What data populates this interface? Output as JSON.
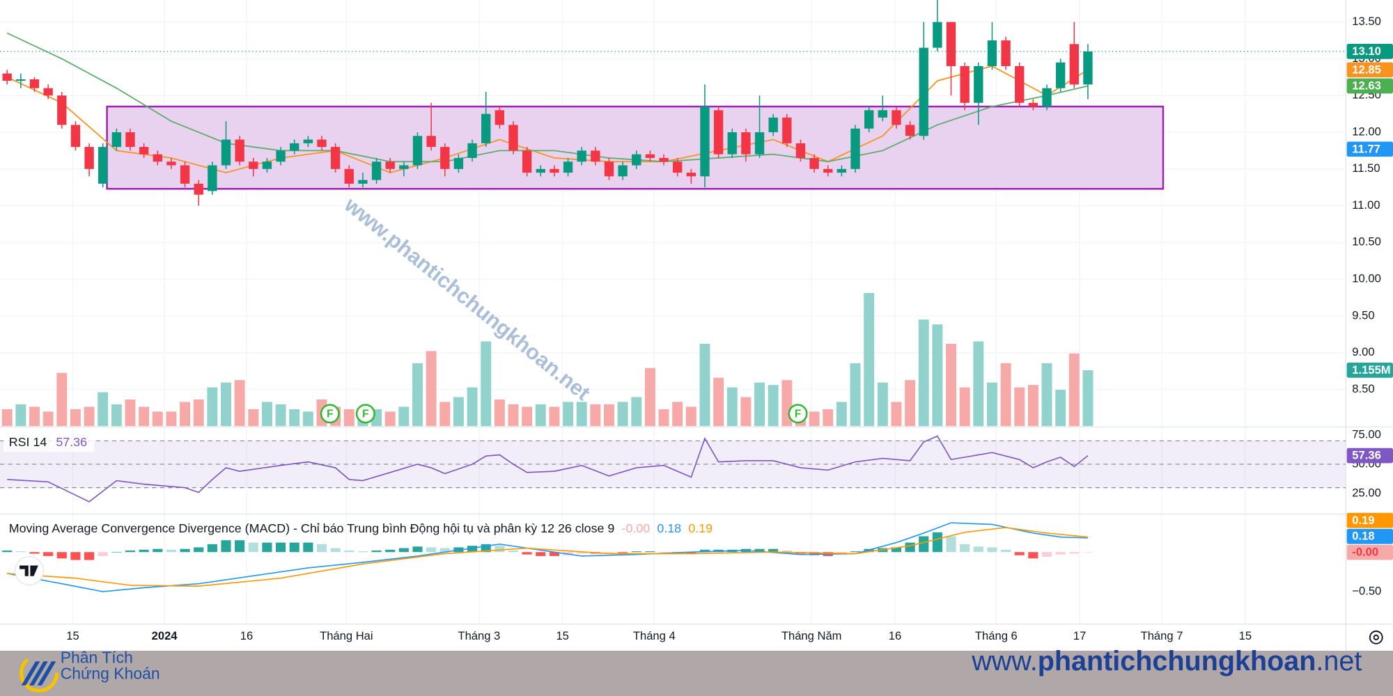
{
  "chart_data": {
    "type": "candlestick",
    "xlim": [
      -0.52,
      97.86
    ],
    "xticks": [
      {
        "value": 4.8,
        "label": "15"
      },
      {
        "value": 11.5,
        "label": "2024"
      },
      {
        "value": 17.5,
        "label": "16"
      },
      {
        "value": 24.8,
        "label": "Tháng Hai"
      },
      {
        "value": 34.5,
        "label": "Tháng 3"
      },
      {
        "value": 40.6,
        "label": "15"
      },
      {
        "value": 47.3,
        "label": "Tháng 4"
      },
      {
        "value": 58.8,
        "label": "Tháng Năm"
      },
      {
        "value": 64.9,
        "label": "16"
      },
      {
        "value": 72.3,
        "label": "Tháng 6"
      },
      {
        "value": 78.4,
        "label": "17"
      },
      {
        "value": 84.4,
        "label": "Tháng 7"
      },
      {
        "value": 90.5,
        "label": "15"
      }
    ],
    "ylim": [
      8.0,
      13.8
    ],
    "yticks": [
      {
        "value": 8.5,
        "label": "8.50"
      },
      {
        "value": 9,
        "label": "9.00"
      },
      {
        "value": 9.5,
        "label": "9.50"
      },
      {
        "value": 10,
        "label": "10.00"
      },
      {
        "value": 10.5,
        "label": "10.50"
      },
      {
        "value": 11,
        "label": "11.00"
      },
      {
        "value": 11.5,
        "label": "11.50"
      },
      {
        "value": 12,
        "label": "12.00"
      },
      {
        "value": 12.5,
        "label": "12.50"
      },
      {
        "value": 13,
        "label": "13.00"
      },
      {
        "value": 13.5,
        "label": "13.50"
      }
    ],
    "grid": true,
    "colors": {
      "up": "#089981",
      "down": "#f23645",
      "volume_up": "#92d2cc",
      "volume_down": "#f7a9a7"
    },
    "candles": {
      "open": [
        12.8,
        12.7,
        12.72,
        12.6,
        12.5,
        12.1,
        11.8,
        11.3,
        11.8,
        12.0,
        11.8,
        11.7,
        11.6,
        11.55,
        11.3,
        11.2,
        11.55,
        11.9,
        11.6,
        11.5,
        11.6,
        11.75,
        11.85,
        11.9,
        11.8,
        11.5,
        11.3,
        11.35,
        11.6,
        11.5,
        11.55,
        11.95,
        11.8,
        11.5,
        11.65,
        11.85,
        12.3,
        12.1,
        11.75,
        11.45,
        11.5,
        11.45,
        11.6,
        11.75,
        11.6,
        11.4,
        11.55,
        11.7,
        11.65,
        11.6,
        11.45,
        11.4,
        12.3,
        11.7,
        12.0,
        11.7,
        12.0,
        12.2,
        11.85,
        11.65,
        11.5,
        11.45,
        11.5,
        12.05,
        12.2,
        12.3,
        12.1,
        11.95,
        13.15,
        13.5,
        12.9,
        12.4,
        12.9,
        13.25,
        12.9,
        12.4,
        12.35,
        12.6,
        13.2,
        12.65
      ],
      "high": [
        12.85,
        12.8,
        12.75,
        12.65,
        12.55,
        12.15,
        11.85,
        11.85,
        12.05,
        12.05,
        11.85,
        11.75,
        11.65,
        11.6,
        11.35,
        11.6,
        12.15,
        11.95,
        11.65,
        11.65,
        11.8,
        11.9,
        11.95,
        11.95,
        11.85,
        11.55,
        11.45,
        11.65,
        11.65,
        11.6,
        12.0,
        12.4,
        11.85,
        11.7,
        11.9,
        12.55,
        12.35,
        12.15,
        11.8,
        11.55,
        11.55,
        11.65,
        11.8,
        11.8,
        11.65,
        11.6,
        11.75,
        11.75,
        11.7,
        11.65,
        11.5,
        12.65,
        12.35,
        12.05,
        12.05,
        12.5,
        12.25,
        12.25,
        11.9,
        11.7,
        11.55,
        11.55,
        12.1,
        12.35,
        12.5,
        12.35,
        12.15,
        13.5,
        13.8,
        13.5,
        12.95,
        12.95,
        13.5,
        13.3,
        12.95,
        12.45,
        12.65,
        13.0,
        13.5,
        13.2
      ],
      "low": [
        12.65,
        12.6,
        12.55,
        12.45,
        12.05,
        11.75,
        11.4,
        11.25,
        11.75,
        11.75,
        11.65,
        11.55,
        11.5,
        11.25,
        11.0,
        11.15,
        11.5,
        11.55,
        11.4,
        11.45,
        11.55,
        11.7,
        11.8,
        11.75,
        11.45,
        11.25,
        11.25,
        11.3,
        11.45,
        11.4,
        11.5,
        11.75,
        11.4,
        11.45,
        11.6,
        11.8,
        12.05,
        11.7,
        11.4,
        11.4,
        11.4,
        11.4,
        11.55,
        11.55,
        11.35,
        11.35,
        11.5,
        11.6,
        11.55,
        11.4,
        11.3,
        11.25,
        11.65,
        11.65,
        11.6,
        11.65,
        11.95,
        11.8,
        11.6,
        11.45,
        11.4,
        11.4,
        11.45,
        12.0,
        12.15,
        12.05,
        11.9,
        11.9,
        13.1,
        12.5,
        12.3,
        12.1,
        12.85,
        12.85,
        12.35,
        12.3,
        12.3,
        12.55,
        12.6,
        12.45
      ],
      "close": [
        12.7,
        12.72,
        12.6,
        12.5,
        12.1,
        11.8,
        11.5,
        11.8,
        12.0,
        11.8,
        11.7,
        11.6,
        11.55,
        11.3,
        11.15,
        11.55,
        11.9,
        11.6,
        11.5,
        11.6,
        11.75,
        11.85,
        11.9,
        11.8,
        11.5,
        11.3,
        11.35,
        11.6,
        11.5,
        11.55,
        11.95,
        11.8,
        11.5,
        11.65,
        11.85,
        12.25,
        12.1,
        11.75,
        11.45,
        11.5,
        11.45,
        11.6,
        11.75,
        11.6,
        11.4,
        11.55,
        11.7,
        11.65,
        11.6,
        11.45,
        11.4,
        12.35,
        11.7,
        12.0,
        11.7,
        12.0,
        12.2,
        11.85,
        11.65,
        11.5,
        11.45,
        11.5,
        12.05,
        12.3,
        12.3,
        12.1,
        11.95,
        13.15,
        13.5,
        12.9,
        12.4,
        12.9,
        13.25,
        12.9,
        12.4,
        12.35,
        12.6,
        12.95,
        12.65,
        13.1
      ]
    },
    "volume": {
      "ylim": [
        0,
        8.8
      ],
      "values": [
        0.35,
        0.45,
        0.4,
        0.3,
        1.1,
        0.35,
        0.4,
        0.7,
        0.45,
        0.55,
        0.4,
        0.3,
        0.3,
        0.5,
        0.55,
        0.8,
        0.9,
        0.95,
        0.35,
        0.5,
        0.45,
        0.35,
        0.3,
        0.55,
        0.4,
        0.35,
        0.3,
        0.35,
        0.3,
        0.4,
        1.3,
        1.55,
        0.5,
        0.6,
        0.8,
        1.75,
        0.55,
        0.45,
        0.4,
        0.45,
        0.4,
        0.5,
        0.5,
        0.45,
        0.45,
        0.5,
        0.6,
        1.2,
        0.35,
        0.5,
        0.4,
        1.7,
        1.0,
        0.8,
        0.6,
        0.9,
        0.85,
        0.95,
        0.35,
        0.3,
        0.35,
        0.5,
        1.3,
        2.75,
        0.9,
        0.5,
        0.95,
        2.2,
        2.1,
        1.7,
        0.8,
        1.75,
        0.9,
        1.3,
        0.8,
        0.85,
        1.3,
        0.75,
        1.5,
        1.155
      ],
      "last_label": "1.155M",
      "color": "#26a69a"
    },
    "moving_averages": [
      {
        "color": "#f7931e",
        "x": [
          0,
          4,
          8,
          12,
          16,
          20,
          24,
          28,
          32,
          36,
          40,
          44,
          48,
          52,
          56,
          60,
          64,
          68,
          72,
          76,
          79
        ],
        "values": [
          12.75,
          12.4,
          11.75,
          11.65,
          11.45,
          11.65,
          11.75,
          11.45,
          11.65,
          11.9,
          11.65,
          11.6,
          11.6,
          11.75,
          11.9,
          11.6,
          11.95,
          12.7,
          12.9,
          12.5,
          12.85
        ]
      },
      {
        "color": "#5cad6a",
        "x": [
          0,
          4,
          8,
          12,
          16,
          20,
          24,
          28,
          32,
          36,
          40,
          44,
          48,
          52,
          56,
          60,
          64,
          68,
          72,
          76,
          79
        ],
        "values": [
          13.35,
          13.0,
          12.6,
          12.15,
          11.85,
          11.75,
          11.75,
          11.6,
          11.6,
          11.75,
          11.75,
          11.65,
          11.6,
          11.65,
          11.7,
          11.6,
          11.75,
          12.1,
          12.35,
          12.5,
          12.63
        ]
      }
    ],
    "price_labels": [
      {
        "value": 13.1,
        "label": "13.10",
        "color": "#089981"
      },
      {
        "value": 12.85,
        "label": "12.85",
        "color": "#f7931e"
      },
      {
        "value": 12.63,
        "label": "12.63",
        "color": "#4caf50"
      },
      {
        "value": 11.77,
        "label": "11.77",
        "color": "#2196f3"
      }
    ],
    "range_box": {
      "x": [
        7.3,
        84.5
      ],
      "y": [
        11.23,
        12.35
      ],
      "color": "#9c27b0",
      "fill": "#e8d2f0"
    },
    "events": [
      {
        "x": 23.6,
        "label": "F"
      },
      {
        "x": 26.2,
        "label": "F"
      },
      {
        "x": 57.8,
        "label": "F"
      }
    ],
    "rsi": {
      "title": "RSI 14",
      "color": "#7e57c2",
      "ylim": [
        8.3,
        81
      ],
      "yticks": [
        {
          "value": 75,
          "label": "75.00"
        },
        {
          "value": 50,
          "label": "50.00"
        },
        {
          "value": 25,
          "label": "25.00"
        }
      ],
      "bands": [
        70,
        50,
        30
      ],
      "x": [
        0,
        3,
        6,
        8,
        10,
        13,
        14,
        15,
        16,
        17,
        20,
        22,
        24,
        25,
        26,
        28,
        30,
        31,
        32,
        34,
        35,
        36,
        37,
        38,
        40,
        42,
        44,
        46,
        48,
        50,
        51,
        52,
        54,
        56,
        58,
        60,
        62,
        64,
        66,
        67,
        68,
        69,
        71,
        72,
        74,
        75,
        76,
        77,
        78,
        79
      ],
      "values": [
        37,
        35,
        18,
        36,
        33,
        30,
        26,
        37,
        47,
        44,
        49,
        52,
        47,
        37,
        36,
        43,
        50,
        47,
        42,
        50,
        57,
        58,
        50,
        43,
        44,
        49,
        40,
        47,
        49,
        39,
        72,
        52,
        53,
        53,
        47,
        45,
        52,
        55,
        53,
        69,
        74,
        54,
        58,
        60,
        54,
        47,
        52,
        56,
        48,
        57.36
      ]
    },
    "macd": {
      "title": "Moving Average Convergence Divergence (MACD) - Chỉ báo Trung bình Động hội tụ và phân kỳ 12 26 close 9",
      "ylim": [
        -0.91,
        0.47
      ],
      "yticks": [
        {
          "value": -0.5,
          "label": "−0.50"
        }
      ],
      "macd": {
        "color": "#2196f3",
        "x": [
          0,
          4,
          7,
          10,
          14,
          18,
          22,
          26,
          30,
          36,
          42,
          46,
          50,
          54,
          58,
          62,
          65,
          67,
          69,
          72,
          75,
          77,
          79
        ],
        "values": [
          -0.27,
          -0.4,
          -0.5,
          -0.45,
          -0.4,
          -0.3,
          -0.2,
          -0.13,
          -0.05,
          0.1,
          -0.05,
          -0.03,
          0.0,
          0.02,
          -0.03,
          -0.02,
          0.12,
          0.24,
          0.37,
          0.35,
          0.24,
          0.19,
          0.18
        ]
      },
      "signal": {
        "color": "#ff9800",
        "x": [
          0,
          5,
          9,
          14,
          20,
          26,
          32,
          38,
          44,
          50,
          56,
          62,
          66,
          70,
          73,
          76,
          79
        ],
        "values": [
          -0.27,
          -0.33,
          -0.42,
          -0.43,
          -0.33,
          -0.15,
          -0.02,
          0.05,
          -0.02,
          -0.02,
          0.0,
          -0.02,
          0.08,
          0.25,
          0.31,
          0.24,
          0.19
        ]
      },
      "histogram": {
        "colors": {
          "pos_up": "#26a69a",
          "pos_down": "#b2dfdb",
          "neg_down": "#ff5252",
          "neg_up": "#ffcdd2"
        },
        "values": [
          0.02,
          0.01,
          -0.02,
          -0.05,
          -0.08,
          -0.1,
          -0.1,
          -0.05,
          0.0,
          0.02,
          0.03,
          0.04,
          0.03,
          0.04,
          0.06,
          0.1,
          0.15,
          0.15,
          0.12,
          0.12,
          0.12,
          0.12,
          0.12,
          0.1,
          0.05,
          0.02,
          0.01,
          0.02,
          0.03,
          0.05,
          0.07,
          0.06,
          0.05,
          0.06,
          0.08,
          0.1,
          0.08,
          0.02,
          -0.03,
          -0.05,
          -0.05,
          -0.04,
          -0.02,
          -0.02,
          -0.01,
          -0.01,
          0.01,
          0.01,
          0.0,
          -0.01,
          -0.02,
          0.03,
          0.03,
          0.03,
          0.04,
          0.04,
          0.04,
          0.02,
          -0.02,
          -0.04,
          -0.05,
          -0.03,
          0.01,
          0.04,
          0.05,
          0.06,
          0.12,
          0.2,
          0.25,
          0.2,
          0.1,
          0.07,
          0.06,
          0.03,
          -0.04,
          -0.08,
          -0.06,
          -0.03,
          -0.02,
          -0.004
        ]
      },
      "legend": [
        {
          "value": -0.004,
          "label": "-0.00",
          "color": "#f7a9a7"
        },
        {
          "value": 0.18,
          "label": "0.18",
          "color": "#2196f3"
        },
        {
          "value": 0.19,
          "label": "0.19",
          "color": "#ff9800"
        }
      ]
    }
  },
  "watermark": "www.phantichchungkhoan.net",
  "footer": {
    "logo_line1": "Phân Tích",
    "logo_line2": "Chứng Khoán",
    "url_prefix": "www.",
    "url_domain": "phantichchungkhoan",
    "url_suffix": ".net"
  }
}
